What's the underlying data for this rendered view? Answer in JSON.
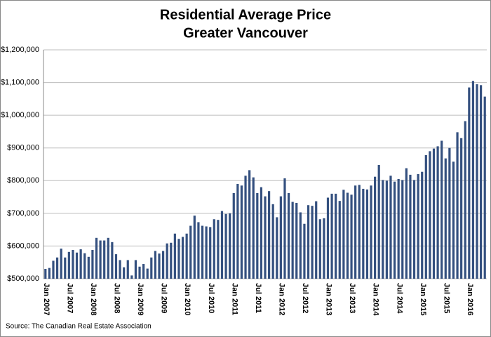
{
  "chart_data": {
    "type": "bar",
    "title": "Residential Average Price",
    "subtitle": "Greater Vancouver",
    "source": "Source: The Canadian Real Estate Association",
    "color": "#34507f",
    "grid": true,
    "ylim": [
      500000,
      1200000
    ],
    "yticks": [
      {
        "value": 500000,
        "label": "$500,000"
      },
      {
        "value": 600000,
        "label": "$600,000"
      },
      {
        "value": 700000,
        "label": "$700,000"
      },
      {
        "value": 800000,
        "label": "$800,000"
      },
      {
        "value": 900000,
        "label": "$900,000"
      },
      {
        "value": 1000000,
        "label": "$1,000,000"
      },
      {
        "value": 1100000,
        "label": "$1,100,000"
      },
      {
        "value": 1200000,
        "label": "$1,200,000"
      }
    ],
    "categories": [
      "Jan 2007",
      null,
      null,
      null,
      null,
      null,
      "Jul 2007",
      null,
      null,
      null,
      null,
      null,
      "Jan 2008",
      null,
      null,
      null,
      null,
      null,
      "Jul 2008",
      null,
      null,
      null,
      null,
      null,
      "Jan 2009",
      null,
      null,
      null,
      null,
      null,
      "Jul 2009",
      null,
      null,
      null,
      null,
      null,
      "Jan 2010",
      null,
      null,
      null,
      null,
      null,
      "Jul 2010",
      null,
      null,
      null,
      null,
      null,
      "Jan 2011",
      null,
      null,
      null,
      null,
      null,
      "Jul 2011",
      null,
      null,
      null,
      null,
      null,
      "Jan 2012",
      null,
      null,
      null,
      null,
      null,
      "Jul 2012",
      null,
      null,
      null,
      null,
      null,
      "Jan 2013",
      null,
      null,
      null,
      null,
      null,
      "Jul 2013",
      null,
      null,
      null,
      null,
      null,
      "Jan 2014",
      null,
      null,
      null,
      null,
      null,
      "Jul 2014",
      null,
      null,
      null,
      null,
      null,
      "Jan 2015",
      null,
      null,
      null,
      null,
      null,
      "Jul 2015",
      null,
      null,
      null,
      null,
      null,
      "Jan 2016",
      null,
      null,
      null,
      null
    ],
    "values": [
      530000,
      533000,
      555000,
      565000,
      592000,
      565000,
      582000,
      588000,
      580000,
      590000,
      578000,
      567000,
      588000,
      625000,
      617000,
      617000,
      625000,
      612000,
      575000,
      557000,
      535000,
      557000,
      510000,
      557000,
      537000,
      545000,
      531000,
      565000,
      585000,
      577000,
      585000,
      608000,
      610000,
      638000,
      622000,
      628000,
      638000,
      662000,
      693000,
      673000,
      662000,
      660000,
      658000,
      682000,
      680000,
      707000,
      698000,
      700000,
      762000,
      790000,
      785000,
      815000,
      832000,
      810000,
      762000,
      780000,
      752000,
      768000,
      728000,
      688000,
      752000,
      807000,
      762000,
      735000,
      732000,
      703000,
      668000,
      725000,
      723000,
      737000,
      682000,
      685000,
      748000,
      760000,
      760000,
      738000,
      772000,
      763000,
      757000,
      785000,
      787000,
      775000,
      773000,
      785000,
      812000,
      848000,
      802000,
      800000,
      815000,
      797000,
      805000,
      802000,
      838000,
      818000,
      802000,
      820000,
      827000,
      878000,
      890000,
      898000,
      905000,
      922000,
      868000,
      900000,
      858000,
      948000,
      930000,
      982000,
      1085000,
      1105000,
      1095000,
      1092000,
      1057000
    ]
  }
}
